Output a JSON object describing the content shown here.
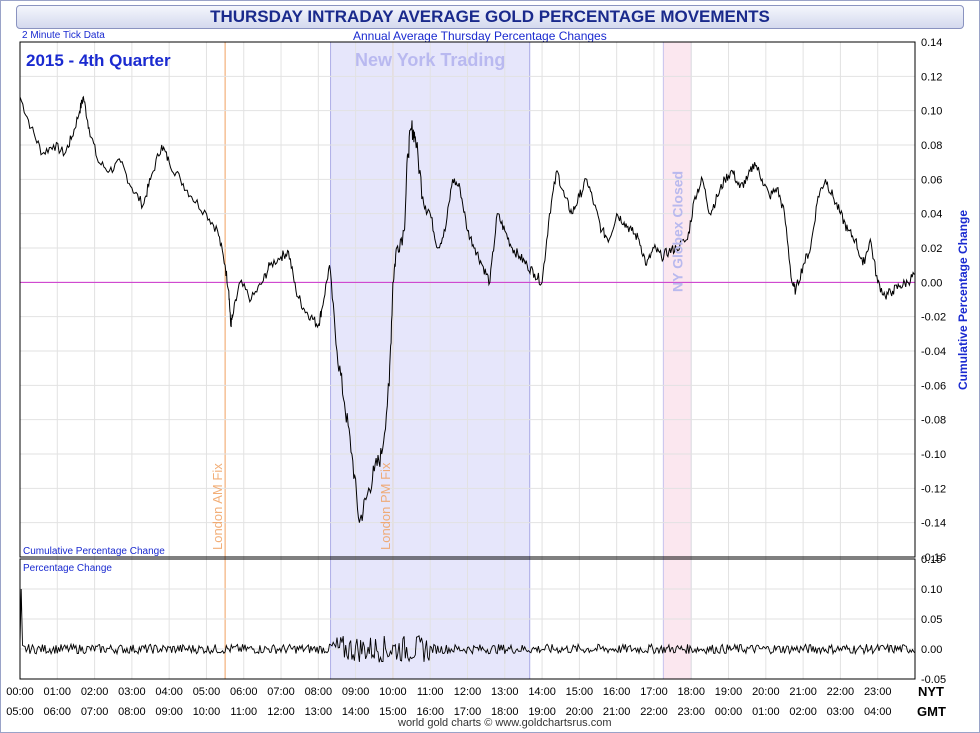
{
  "header": {
    "title": "THURSDAY INTRADAY AVERAGE GOLD PERCENTAGE MOVEMENTS",
    "subtitle": "Annual Average Thursday Percentage Changes",
    "tick_note": "2 Minute Tick Data",
    "period": "2015 - 4th Quarter"
  },
  "footer": {
    "credit": "world gold charts © www.goldchartsrus.com",
    "nyt": "NYT",
    "gmt": "GMT"
  },
  "colors": {
    "title": "#1a2a8c",
    "line": "#000000",
    "zero": "#cc33cc",
    "fix": "#f0a060",
    "ny_band": "#e6e6fb",
    "globex_band": "#fbe7ef",
    "label_blue": "#1a2ad0"
  },
  "chart_data": [
    {
      "type": "line",
      "name": "cumulative",
      "title": "Cumulative Percentage Change",
      "ylabel": "Cumulative Percentage Change",
      "ylim": [
        -0.16,
        0.14
      ],
      "yticks": [
        "0.14",
        "0.12",
        "0.10",
        "0.08",
        "0.06",
        "0.04",
        "0.02",
        "0.00",
        "-0.02",
        "-0.04",
        "-0.06",
        "-0.08",
        "-0.10",
        "-0.12",
        "-0.14",
        "-0.16"
      ],
      "xlim": [
        0,
        24
      ],
      "x_unit": "hours NYT",
      "points": [
        [
          0,
          0.108
        ],
        [
          0.3,
          0.09
        ],
        [
          0.6,
          0.075
        ],
        [
          0.9,
          0.08
        ],
        [
          1.2,
          0.075
        ],
        [
          1.4,
          0.085
        ],
        [
          1.6,
          0.1
        ],
        [
          1.7,
          0.108
        ],
        [
          1.85,
          0.09
        ],
        [
          2.1,
          0.07
        ],
        [
          2.4,
          0.065
        ],
        [
          2.7,
          0.07
        ],
        [
          3.0,
          0.055
        ],
        [
          3.3,
          0.045
        ],
        [
          3.5,
          0.06
        ],
        [
          3.8,
          0.08
        ],
        [
          4.0,
          0.07
        ],
        [
          4.3,
          0.06
        ],
        [
          4.6,
          0.05
        ],
        [
          5.0,
          0.04
        ],
        [
          5.3,
          0.03
        ],
        [
          5.5,
          0.01
        ],
        [
          5.6,
          -0.005
        ],
        [
          5.65,
          -0.025
        ],
        [
          5.7,
          -0.02
        ],
        [
          5.9,
          0.0
        ],
        [
          6.2,
          -0.01
        ],
        [
          6.5,
          0.0
        ],
        [
          6.7,
          0.01
        ],
        [
          7.0,
          0.015
        ],
        [
          7.2,
          0.018
        ],
        [
          7.4,
          -0.005
        ],
        [
          7.6,
          -0.015
        ],
        [
          7.8,
          -0.02
        ],
        [
          8.0,
          -0.025
        ],
        [
          8.1,
          -0.015
        ],
        [
          8.3,
          0.01
        ],
        [
          8.5,
          -0.04
        ],
        [
          8.7,
          -0.07
        ],
        [
          8.9,
          -0.1
        ],
        [
          9.1,
          -0.14
        ],
        [
          9.3,
          -0.125
        ],
        [
          9.5,
          -0.11
        ],
        [
          9.7,
          -0.1
        ],
        [
          9.9,
          -0.06
        ],
        [
          10.0,
          0.0
        ],
        [
          10.1,
          0.02
        ],
        [
          10.3,
          0.03
        ],
        [
          10.4,
          0.075
        ],
        [
          10.5,
          0.09
        ],
        [
          10.6,
          0.085
        ],
        [
          10.8,
          0.05
        ],
        [
          11.0,
          0.04
        ],
        [
          11.2,
          0.02
        ],
        [
          11.4,
          0.03
        ],
        [
          11.6,
          0.06
        ],
        [
          11.8,
          0.055
        ],
        [
          12.0,
          0.03
        ],
        [
          12.2,
          0.02
        ],
        [
          12.4,
          0.01
        ],
        [
          12.6,
          0.0
        ],
        [
          12.8,
          0.04
        ],
        [
          13.0,
          0.03
        ],
        [
          13.2,
          0.02
        ],
        [
          13.4,
          0.015
        ],
        [
          13.6,
          0.01
        ],
        [
          13.8,
          0.005
        ],
        [
          14.0,
          0.0
        ],
        [
          14.2,
          0.04
        ],
        [
          14.4,
          0.065
        ],
        [
          14.6,
          0.05
        ],
        [
          14.8,
          0.04
        ],
        [
          15.0,
          0.05
        ],
        [
          15.2,
          0.06
        ],
        [
          15.4,
          0.045
        ],
        [
          15.6,
          0.03
        ],
        [
          15.8,
          0.025
        ],
        [
          16.0,
          0.04
        ],
        [
          16.2,
          0.035
        ],
        [
          16.4,
          0.03
        ],
        [
          16.6,
          0.025
        ],
        [
          16.8,
          0.01
        ],
        [
          17.0,
          0.02
        ],
        [
          17.2,
          0.015
        ],
        [
          17.4,
          0.018
        ],
        [
          17.6,
          0.02
        ],
        [
          17.9,
          0.025
        ],
        [
          18.1,
          0.05
        ],
        [
          18.3,
          0.06
        ],
        [
          18.5,
          0.04
        ],
        [
          18.7,
          0.05
        ],
        [
          18.9,
          0.06
        ],
        [
          19.1,
          0.065
        ],
        [
          19.3,
          0.055
        ],
        [
          19.5,
          0.06
        ],
        [
          19.7,
          0.07
        ],
        [
          19.9,
          0.06
        ],
        [
          20.1,
          0.05
        ],
        [
          20.3,
          0.055
        ],
        [
          20.5,
          0.04
        ],
        [
          20.7,
          0.0
        ],
        [
          20.8,
          -0.005
        ],
        [
          21.0,
          0.01
        ],
        [
          21.2,
          0.02
        ],
        [
          21.4,
          0.05
        ],
        [
          21.6,
          0.06
        ],
        [
          21.8,
          0.05
        ],
        [
          22.0,
          0.04
        ],
        [
          22.2,
          0.03
        ],
        [
          22.4,
          0.025
        ],
        [
          22.6,
          0.01
        ],
        [
          22.8,
          0.025
        ],
        [
          23.0,
          0.0
        ],
        [
          23.2,
          -0.008
        ],
        [
          23.4,
          -0.005
        ],
        [
          23.6,
          -0.002
        ],
        [
          23.8,
          0.0
        ],
        [
          24.0,
          0.005
        ]
      ]
    },
    {
      "type": "line",
      "name": "per-tick",
      "title": "Percentage Change",
      "ylim": [
        -0.05,
        0.15
      ],
      "yticks": [
        "0.15",
        "0.10",
        "0.05",
        "0.00",
        "-0.05"
      ],
      "xlim": [
        0,
        24
      ],
      "spike": [
        0,
        0.1
      ],
      "high_volatility_window": [
        8.3,
        11.0
      ]
    }
  ],
  "x_axis": {
    "nyt": [
      "00:00",
      "01:00",
      "02:00",
      "03:00",
      "04:00",
      "05:00",
      "06:00",
      "07:00",
      "08:00",
      "09:00",
      "10:00",
      "11:00",
      "12:00",
      "13:00",
      "14:00",
      "15:00",
      "16:00",
      "17:00",
      "18:00",
      "19:00",
      "20:00",
      "21:00",
      "22:00",
      "23:00"
    ],
    "gmt": [
      "05:00",
      "06:00",
      "07:00",
      "08:00",
      "09:00",
      "10:00",
      "11:00",
      "12:00",
      "13:00",
      "14:00",
      "15:00",
      "16:00",
      "17:00",
      "18:00",
      "19:00",
      "20:00",
      "21:00",
      "22:00",
      "23:00",
      "00:00",
      "01:00",
      "02:00",
      "03:00",
      "04:00"
    ]
  },
  "sessions": {
    "ny_trading": {
      "label": "New York Trading",
      "from": 8.33,
      "to": 13.67
    },
    "globex_closed": {
      "label": "NY Globex Closed",
      "from": 17.25,
      "to": 18.0
    }
  },
  "fixes": [
    {
      "label": "London AM Fix",
      "at": 5.5
    },
    {
      "label": "London PM Fix",
      "at": 10.0
    }
  ]
}
